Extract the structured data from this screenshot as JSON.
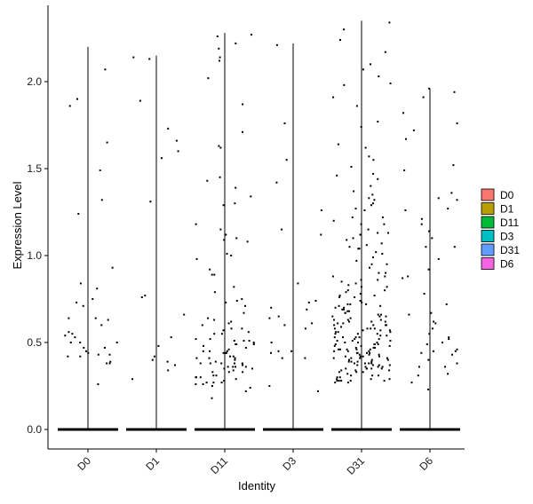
{
  "chart_data": {
    "type": "violin",
    "xlabel": "Identity",
    "ylabel": "Expression Level",
    "ylim": [
      -0.12,
      2.4
    ],
    "yticks": [
      "0.0",
      "0.5",
      "1.0",
      "1.5",
      "2.0"
    ],
    "categories": [
      "D0",
      "D1",
      "D11",
      "D3",
      "D31",
      "D6"
    ],
    "colors": {
      "D0": "#F8766D",
      "D1": "#B79F00",
      "D11": "#00BA38",
      "D3": "#00BFC4",
      "D31": "#619CFF",
      "D6": "#F564E3"
    },
    "legend": {
      "placement": "right",
      "items": [
        "D0",
        "D1",
        "D11",
        "D3",
        "D31",
        "D6"
      ]
    },
    "series": [
      {
        "name": "D0",
        "max": 2.2,
        "values": [
          0.81,
          0.73,
          0.64,
          0.5,
          0.43,
          0.26,
          0.56,
          0.39,
          1.49,
          1.65,
          1.32,
          1.24,
          2.07,
          1.86,
          0.75,
          0.55,
          0.5,
          0.47,
          0.43,
          0.63,
          0.54,
          0.45,
          0.6,
          0.5,
          0.53,
          0.42,
          0.93,
          0.38,
          0.71,
          0.47,
          0.38,
          0.64,
          0.42,
          1.9,
          0.84,
          0.44
        ]
      },
      {
        "name": "D1",
        "max": 2.15,
        "values": [
          0.66,
          0.42,
          0.53,
          1.89,
          0.4,
          1.6,
          0.37,
          0.77,
          0.48,
          1.66,
          0.34,
          2.14,
          1.56,
          0.29,
          0.39,
          1.31,
          1.73,
          0.76,
          2.13
        ]
      },
      {
        "name": "D11",
        "max": 2.28,
        "values": [
          1.63,
          1.45,
          1.34,
          1.15,
          0.98,
          0.52,
          0.45,
          0.38,
          0.3,
          0.25,
          0.18,
          2.14,
          2.02,
          1.71,
          1.29,
          1.01,
          0.71,
          0.58,
          0.49,
          0.41,
          0.36,
          0.27,
          0.44,
          0.51,
          0.33,
          0.28,
          2.27,
          1.43,
          1.12,
          0.56,
          0.62,
          0.3,
          0.36,
          0.42,
          2.19,
          1.87,
          1.39,
          0.89,
          0.75,
          0.5,
          0.35,
          0.27,
          0.61,
          0.4,
          0.47,
          0.33,
          0.29,
          0.38,
          0.24,
          0.3,
          0.45,
          0.55,
          0.37,
          0.27,
          0.22,
          0.41,
          0.33,
          2.12,
          1.62,
          1.18,
          0.89,
          0.74,
          0.67,
          0.58,
          0.49,
          0.42,
          0.36,
          0.31,
          0.26,
          0.38,
          0.44,
          0.34,
          2.22,
          1.3,
          1.09,
          0.82,
          0.51,
          0.36,
          0.26,
          0.46,
          0.64,
          0.41,
          0.38,
          0.55,
          0.49,
          0.31,
          2.26,
          0.92,
          0.79,
          0.6,
          0.45,
          0.35,
          1.1,
          0.73,
          0.51,
          0.38,
          0.63,
          0.57,
          0.44,
          0.48,
          1.08,
          0.39,
          0.52,
          1.0
        ]
      },
      {
        "name": "D3",
        "max": 2.22,
        "values": [
          1.55,
          0.64,
          0.5,
          0.44,
          0.7,
          0.73,
          0.58,
          0.41,
          0.6,
          1.42,
          0.45,
          0.22,
          0.41,
          0.25,
          0.74,
          1.76,
          1.26,
          2.21,
          0.45,
          0.84,
          1.12,
          0.65,
          0.69,
          1.15,
          0.61
        ]
      },
      {
        "name": "D31",
        "max": 2.35,
        "values": [
          0.68,
          0.57,
          0.49,
          0.42,
          0.37,
          0.31,
          0.27,
          0.46,
          0.55,
          0.63,
          0.77,
          0.86,
          1.04,
          1.37,
          1.47,
          1.57,
          0.72,
          0.51,
          0.44,
          0.39,
          0.35,
          0.28,
          0.82,
          0.95,
          1.15,
          1.27,
          1.18,
          0.63,
          0.48,
          0.53,
          0.34,
          0.41,
          2.34,
          0.6,
          0.46,
          0.38,
          0.69,
          0.88,
          1.05,
          1.13,
          1.32,
          0.56,
          0.49,
          0.43,
          0.35,
          0.8,
          0.72,
          0.66,
          0.58,
          0.45,
          0.38,
          0.3,
          0.9,
          1.02,
          1.2,
          1.4,
          0.62,
          0.54,
          0.47,
          0.4,
          0.33,
          0.28,
          1.98,
          0.76,
          0.67,
          0.6,
          0.52,
          0.45,
          0.41,
          0.36,
          0.86,
          0.99,
          1.55,
          0.7,
          0.63,
          0.57,
          0.5,
          0.42,
          0.34,
          0.28,
          1.09,
          1.22,
          0.74,
          0.48,
          0.56,
          0.39,
          1.33,
          2.17,
          0.61,
          0.53,
          0.46,
          0.36,
          0.82,
          0.93,
          1.62,
          0.71,
          0.65,
          0.55,
          0.44,
          0.38,
          0.31,
          0.28,
          1.06,
          1.26,
          1.44,
          1.86,
          0.58,
          0.51,
          0.43,
          0.37,
          0.79,
          0.69,
          0.62,
          0.54,
          0.47,
          0.41,
          0.34,
          0.95,
          1.12,
          1.35,
          2.07,
          0.73,
          0.6,
          0.49,
          0.4,
          0.32,
          0.27,
          0.85,
          1.01,
          1.18,
          1.51,
          0.65,
          0.56,
          0.48,
          0.42,
          0.35,
          0.29,
          2.03,
          0.77,
          0.66,
          0.57,
          0.46,
          0.38,
          0.3,
          0.9,
          1.1,
          1.29,
          1.74,
          0.62,
          0.53,
          0.45,
          0.39,
          0.33,
          0.28,
          1.99,
          0.84,
          1.04,
          0.7,
          0.6,
          0.5,
          0.43,
          0.37,
          0.31,
          1.77,
          0.76,
          0.67,
          0.58,
          0.49,
          0.41,
          0.35,
          0.97,
          1.22,
          2.1,
          0.72,
          0.59,
          0.51,
          0.44,
          0.36,
          0.29,
          1.46,
          0.83,
          0.68,
          0.61,
          0.53,
          0.46,
          0.39,
          1.07,
          1.64,
          0.78,
          0.65,
          0.55,
          0.47,
          0.4,
          0.33,
          0.88,
          2.24,
          2.3,
          1.3,
          0.71,
          0.58,
          0.5,
          0.42,
          0.35,
          1.13,
          1.91,
          0.8,
          0.64,
          0.52,
          0.44,
          0.37,
          0.29
        ]
      },
      {
        "name": "D6",
        "max": 1.96,
        "values": [
          1.82,
          1.52,
          1.26,
          0.67,
          0.45,
          0.32,
          0.27,
          1.49,
          1.72,
          1.05,
          0.72,
          0.44,
          0.38,
          0.31,
          1.67,
          1.18,
          0.98,
          0.55,
          0.49,
          0.4,
          1.33,
          1.1,
          0.87,
          0.62,
          0.43,
          0.36,
          1.36,
          1.21,
          0.92,
          0.66,
          0.58,
          0.36,
          0.23,
          1.27,
          1.14,
          0.78,
          0.52,
          0.46,
          1.96,
          1.91,
          1.05,
          0.53,
          0.45,
          1.94,
          1.76,
          1.32,
          0.88,
          0.61,
          0.5
        ]
      }
    ]
  }
}
